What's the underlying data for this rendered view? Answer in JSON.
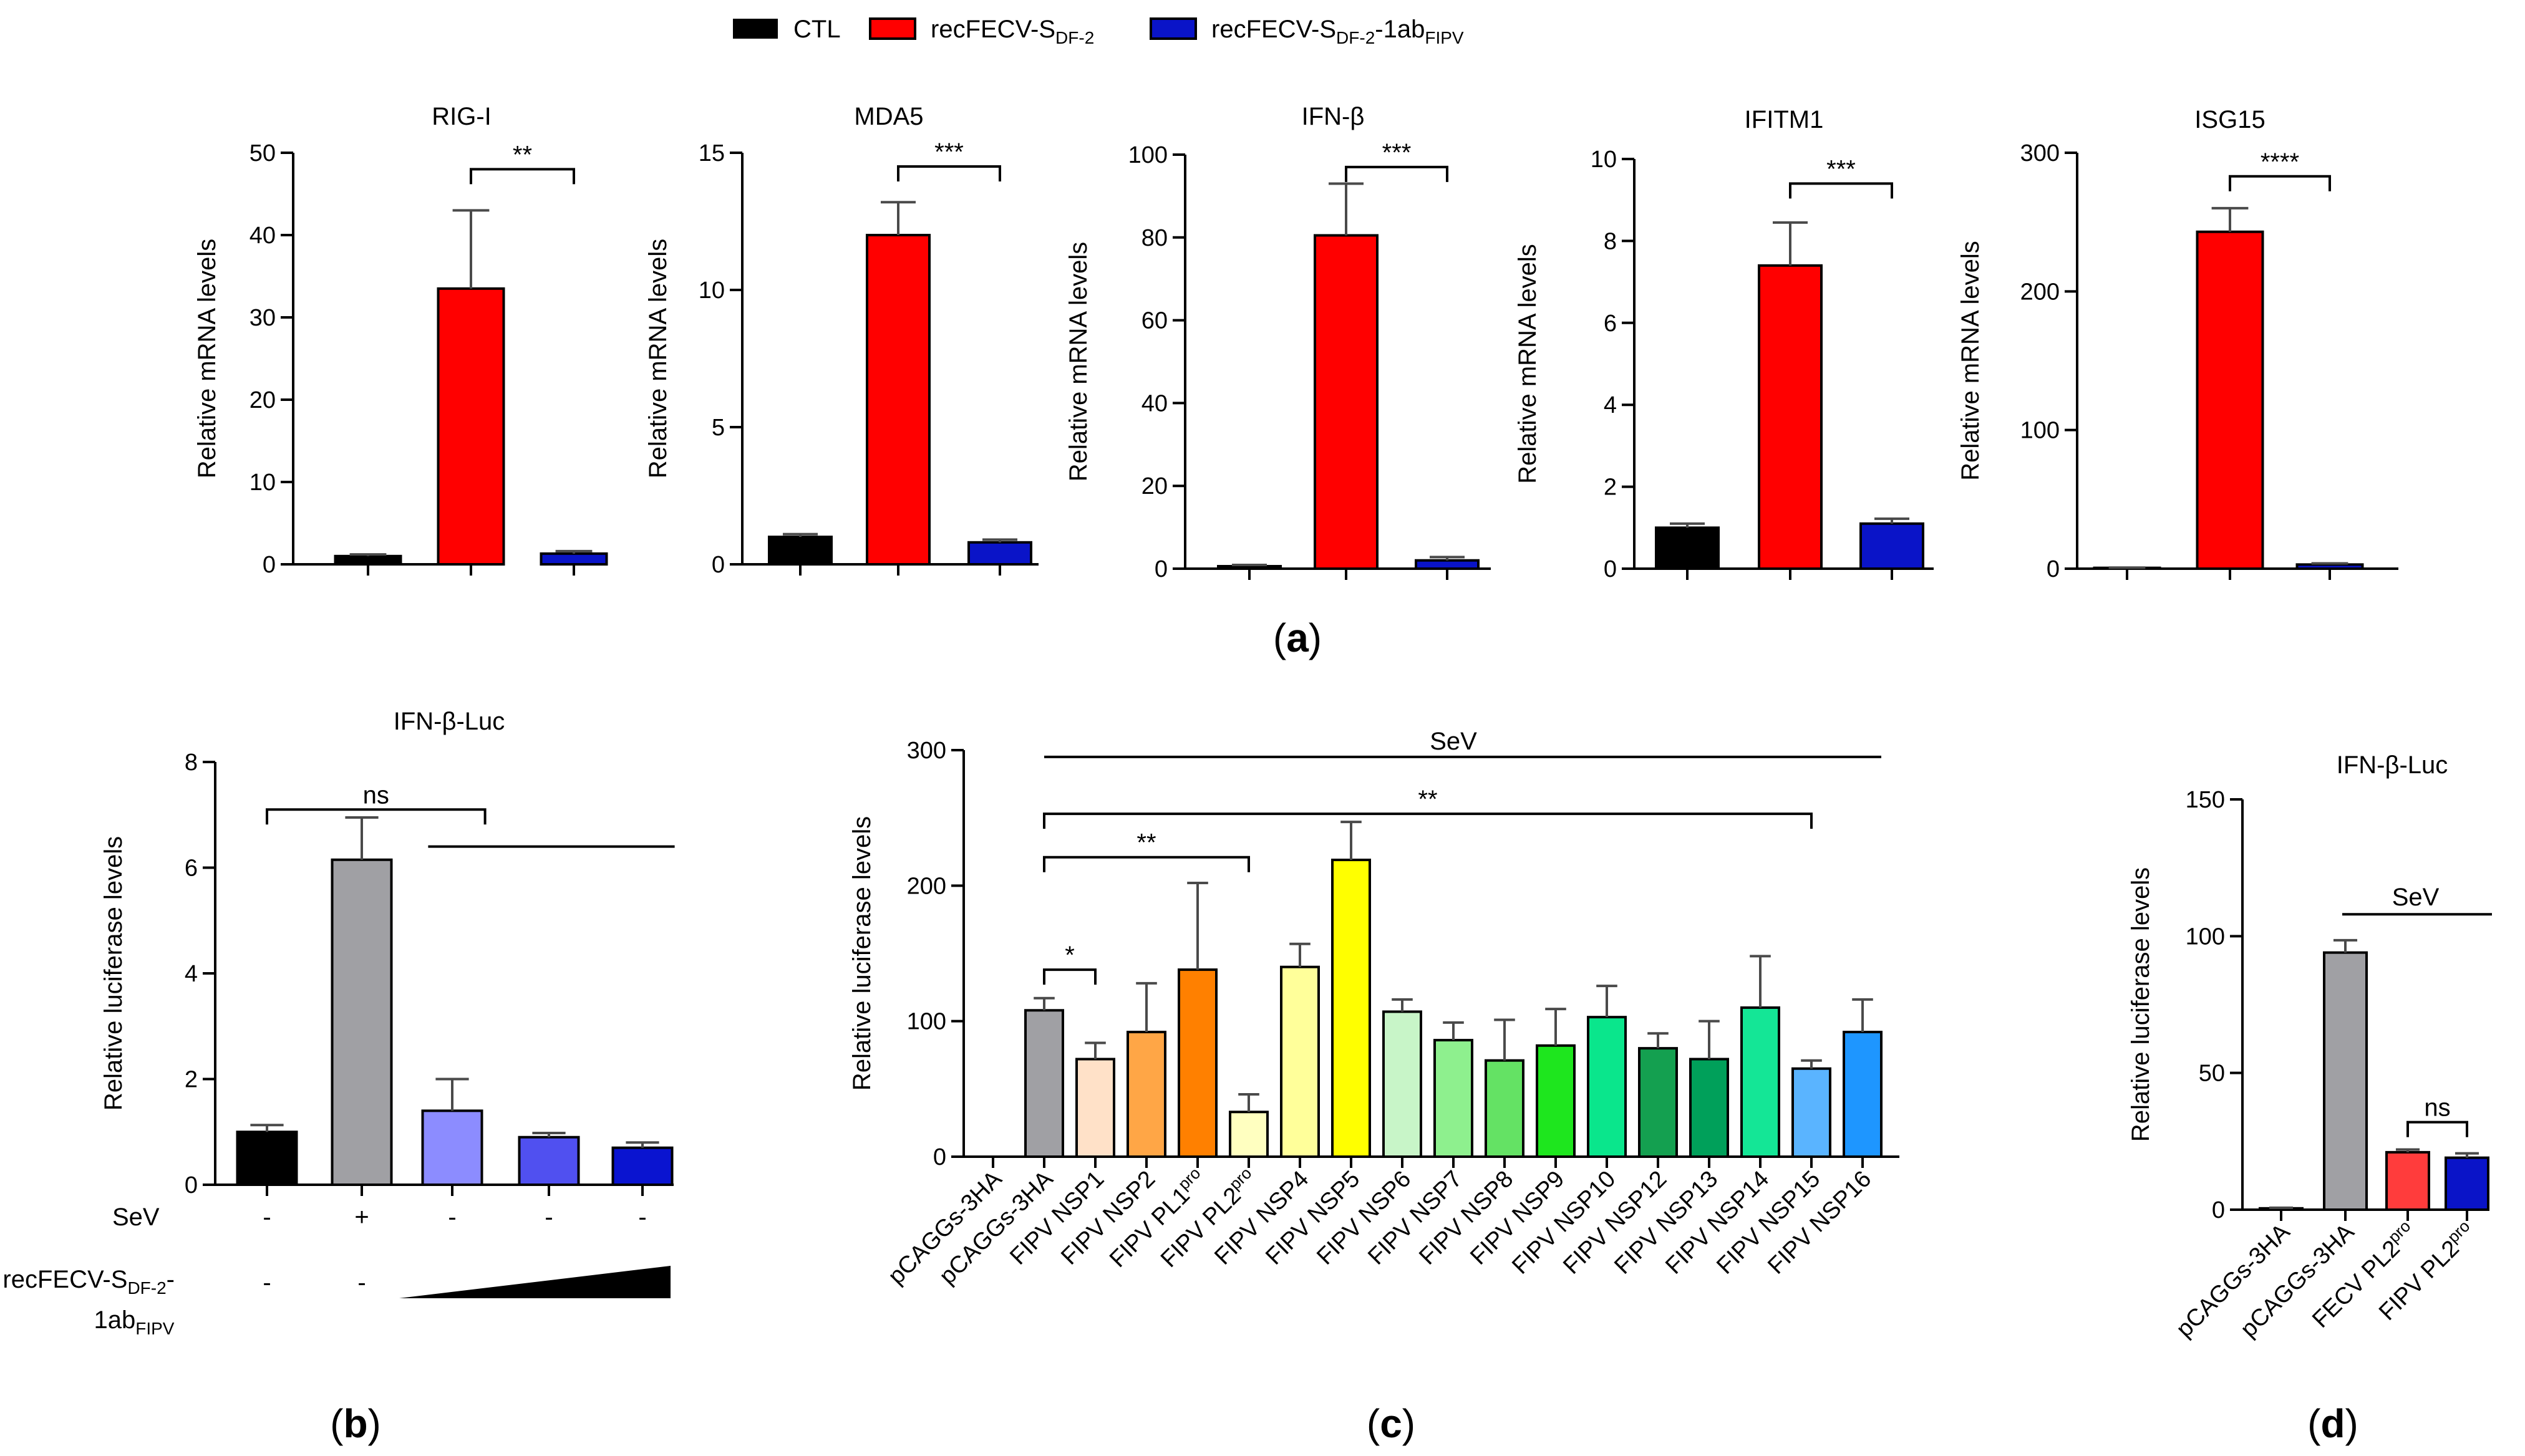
{
  "legend": {
    "entries": [
      {
        "label": "CTL",
        "sub": "",
        "tail": "",
        "color": "#000000"
      },
      {
        "label": "recFECV-S",
        "sub": "DF-2",
        "tail": "",
        "color": "#ff0000"
      },
      {
        "label": "recFECV-S",
        "sub": "DF-2",
        "tail": "-1ab",
        "tail_sub": "FIPV",
        "color": "#0a14c8"
      }
    ]
  },
  "panel_labels": {
    "a": "(a)",
    "b": "(b)",
    "c": "(c)",
    "d": "(d)"
  },
  "panel_letters": {
    "a": "a",
    "b": "b",
    "c": "c",
    "d": "d"
  },
  "chart_data": [
    {
      "id": "a1",
      "type": "bar",
      "title": "RIG-I",
      "ylabel": "Relative mRNA levels",
      "ylim": [
        0,
        50
      ],
      "ticks": [
        0,
        10,
        20,
        30,
        40,
        50
      ],
      "categories": [
        "CTL",
        "recFECV-S DF-2",
        "recFECV-S DF-2-1ab FIPV"
      ],
      "values": [
        1.0,
        33.5,
        1.3
      ],
      "errors": [
        0.2,
        9.5,
        0.3
      ],
      "colors": [
        "#000000",
        "#ff0000",
        "#0a14c8"
      ],
      "significance": [
        {
          "from": 1,
          "to": 2,
          "label": "**",
          "y": 48
        }
      ]
    },
    {
      "id": "a2",
      "type": "bar",
      "title": "MDA5",
      "ylabel": "Relative mRNA levels",
      "ylim": [
        0,
        15
      ],
      "ticks": [
        0,
        5,
        10,
        15
      ],
      "categories": [
        "CTL",
        "recFECV-S DF-2",
        "recFECV-S DF-2-1ab FIPV"
      ],
      "values": [
        1.0,
        12.0,
        0.8
      ],
      "errors": [
        0.1,
        1.2,
        0.1
      ],
      "colors": [
        "#000000",
        "#ff0000",
        "#0a14c8"
      ],
      "significance": [
        {
          "from": 1,
          "to": 2,
          "label": "***",
          "y": 14.5
        }
      ]
    },
    {
      "id": "a3",
      "type": "bar",
      "title": "IFN-β",
      "ylabel": "Relative mRNA levels",
      "ylim": [
        0,
        100
      ],
      "ticks": [
        0,
        20,
        40,
        60,
        80,
        100
      ],
      "categories": [
        "CTL",
        "recFECV-S DF-2",
        "recFECV-S DF-2-1ab FIPV"
      ],
      "values": [
        0.6,
        80.5,
        2.0
      ],
      "errors": [
        0.3,
        12.5,
        0.8
      ],
      "colors": [
        "#000000",
        "#ff0000",
        "#0a14c8"
      ],
      "significance": [
        {
          "from": 1,
          "to": 2,
          "label": "***",
          "y": 97
        }
      ]
    },
    {
      "id": "a4",
      "type": "bar",
      "title": "IFITM1",
      "ylabel": "Relative mRNA levels",
      "ylim": [
        0,
        10
      ],
      "ticks": [
        0,
        2,
        4,
        6,
        8,
        10
      ],
      "categories": [
        "CTL",
        "recFECV-S DF-2",
        "recFECV-S DF-2-1ab FIPV"
      ],
      "values": [
        1.0,
        7.4,
        1.1
      ],
      "errors": [
        0.1,
        1.05,
        0.12
      ],
      "colors": [
        "#000000",
        "#ff0000",
        "#0a14c8"
      ],
      "significance": [
        {
          "from": 1,
          "to": 2,
          "label": "***",
          "y": 9.4
        }
      ]
    },
    {
      "id": "a5",
      "type": "bar",
      "title": "ISG15",
      "ylabel": "Relative mRNA levels",
      "ylim": [
        0,
        300
      ],
      "ticks": [
        0,
        100,
        200,
        300
      ],
      "categories": [
        "CTL",
        "recFECV-S DF-2",
        "recFECV-S DF-2-1ab FIPV"
      ],
      "values": [
        0.6,
        243,
        3.0
      ],
      "errors": [
        0.2,
        17,
        0.8
      ],
      "colors": [
        "#000000",
        "#ff0000",
        "#0a14c8"
      ],
      "significance": [
        {
          "from": 1,
          "to": 2,
          "label": "****",
          "y": 283
        }
      ]
    },
    {
      "id": "b",
      "type": "bar",
      "title": "IFN-β-Luc",
      "ylabel": "Relative luciferase levels",
      "ylim": [
        0,
        8
      ],
      "ticks": [
        0,
        2,
        4,
        6,
        8
      ],
      "values": [
        1.0,
        6.15,
        1.4,
        0.9,
        0.7
      ],
      "errors": [
        0.13,
        0.8,
        0.6,
        0.08,
        0.1
      ],
      "colors": [
        "#000000",
        "#a0a0a4",
        "#8c8cff",
        "#5050f0",
        "#0a14d0"
      ],
      "sev_label": "SeV",
      "sev_marks": [
        "-",
        "+",
        "-",
        "-",
        "-"
      ],
      "rec_label": {
        "main": "recFECV-S",
        "sub": "DF-2",
        "tail": "-",
        "line2": "1ab",
        "line2_sub": "FIPV"
      },
      "rec_marks": [
        "-",
        "-"
      ],
      "significance": [
        {
          "from": 0,
          "to": 2.3,
          "label": "ns",
          "y": 7.1
        },
        {
          "from": 1.7,
          "to": 4.3,
          "label": "",
          "y": 6.4
        }
      ]
    },
    {
      "id": "c",
      "type": "bar",
      "title": "",
      "ylabel": "Relative luciferase levels",
      "ylim": [
        0,
        300
      ],
      "ticks": [
        0,
        100,
        200,
        300
      ],
      "categories": [
        {
          "text": "pCAGGs-3HA",
          "sup": ""
        },
        {
          "text": "pCAGGs-3HA",
          "sup": ""
        },
        {
          "text": "FIPV NSP1",
          "sup": ""
        },
        {
          "text": "FIPV NSP2",
          "sup": ""
        },
        {
          "text": "FIPV PL1",
          "sup": "pro"
        },
        {
          "text": "FIPV PL2",
          "sup": "pro"
        },
        {
          "text": "FIPV NSP4",
          "sup": ""
        },
        {
          "text": "FIPV NSP5",
          "sup": ""
        },
        {
          "text": "FIPV NSP6",
          "sup": ""
        },
        {
          "text": "FIPV NSP7",
          "sup": ""
        },
        {
          "text": "FIPV NSP8",
          "sup": ""
        },
        {
          "text": "FIPV NSP9",
          "sup": ""
        },
        {
          "text": "FIPV NSP10",
          "sup": ""
        },
        {
          "text": "FIPV NSP12",
          "sup": ""
        },
        {
          "text": "FIPV NSP13",
          "sup": ""
        },
        {
          "text": "FIPV NSP14",
          "sup": ""
        },
        {
          "text": "FIPV NSP15",
          "sup": ""
        },
        {
          "text": "FIPV NSP16",
          "sup": ""
        }
      ],
      "values": [
        0,
        108,
        72,
        92,
        138,
        33,
        140,
        219,
        107,
        86,
        71,
        82,
        103,
        80,
        72,
        110,
        65,
        92
      ],
      "errors": [
        0,
        9,
        12,
        36,
        64,
        13,
        17,
        28,
        9,
        13,
        30,
        27,
        23,
        11,
        28,
        38,
        6,
        24
      ],
      "colors": [
        "#ffffff",
        "#a0a0a4",
        "#ffe1c8",
        "#ffa646",
        "#ff8000",
        "#ffffc0",
        "#ffff9a",
        "#ffff00",
        "#c8f5c8",
        "#8ef08e",
        "#64e264",
        "#1ee61e",
        "#0ae68c",
        "#14a050",
        "#00a05a",
        "#14e696",
        "#5ab4ff",
        "#1e96ff"
      ],
      "sev_label": "SeV",
      "significance": [
        {
          "from": 1,
          "to": 2,
          "label": "*",
          "y": 138
        },
        {
          "from": 1,
          "to": 5,
          "label": "**",
          "y": 221
        },
        {
          "from": 1,
          "to": 16,
          "label": "**",
          "y": 253
        }
      ]
    },
    {
      "id": "d",
      "type": "bar",
      "title": "IFN-β-Luc",
      "ylabel": "Relative luciferase levels",
      "ylim": [
        0,
        150
      ],
      "ticks": [
        0,
        50,
        100,
        150
      ],
      "categories": [
        {
          "text": "pCAGGs-3HA",
          "sup": ""
        },
        {
          "text": "pCAGGs-3HA",
          "sup": ""
        },
        {
          "text": "FECV PL2",
          "sup": "pro"
        },
        {
          "text": "FIPV PL2",
          "sup": "pro"
        }
      ],
      "values": [
        0.5,
        94,
        21,
        19
      ],
      "errors": [
        0.2,
        4.5,
        1,
        1.6
      ],
      "colors": [
        "#000000",
        "#a0a0a4",
        "#ff3c3c",
        "#0a14c8"
      ],
      "sev_label": "SeV",
      "significance": [
        {
          "from": 2,
          "to": 3,
          "label": "ns",
          "y": 32
        }
      ]
    }
  ]
}
